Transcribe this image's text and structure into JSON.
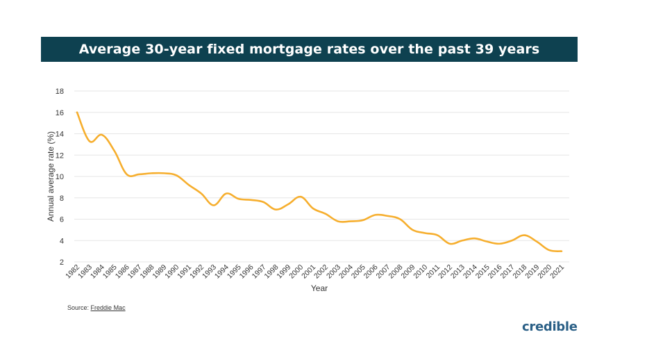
{
  "title": "Average 30-year fixed mortgage rates over the past 39 years",
  "source_label": "Source:",
  "source_name": "Freddie Mac",
  "brand": "credible",
  "colors": {
    "header_bg": "#0e4150",
    "line": "#f6ae2d",
    "grid": "#e6e6e6",
    "brand": "#2a5f86"
  },
  "chart_data": {
    "type": "line",
    "title": "Average 30-year fixed mortgage rates over the past 39 years",
    "xlabel": "Year",
    "ylabel": "Annual average rate (%)",
    "ylim": [
      2,
      18
    ],
    "yticks": [
      2,
      4,
      6,
      8,
      10,
      12,
      14,
      16,
      18
    ],
    "grid": true,
    "categories": [
      "1982",
      "1983",
      "1984",
      "1985",
      "1986",
      "1987",
      "1988",
      "1989",
      "1990",
      "1991",
      "1992",
      "1993",
      "1994",
      "1995",
      "1996",
      "1997",
      "1998",
      "1999",
      "2000",
      "2001",
      "2002",
      "2003",
      "2004",
      "2005",
      "2006",
      "2007",
      "2008",
      "2009",
      "2010",
      "2011",
      "2012",
      "2013",
      "2014",
      "2015",
      "2016",
      "2017",
      "2018",
      "2019",
      "2020",
      "2021"
    ],
    "values": [
      16.0,
      13.3,
      13.9,
      12.4,
      10.2,
      10.2,
      10.3,
      10.3,
      10.1,
      9.2,
      8.4,
      7.3,
      8.4,
      7.9,
      7.8,
      7.6,
      6.9,
      7.4,
      8.1,
      7.0,
      6.5,
      5.8,
      5.8,
      5.9,
      6.4,
      6.3,
      6.0,
      5.0,
      4.7,
      4.5,
      3.7,
      4.0,
      4.2,
      3.9,
      3.7,
      4.0,
      4.5,
      3.9,
      3.1,
      3.0
    ]
  }
}
